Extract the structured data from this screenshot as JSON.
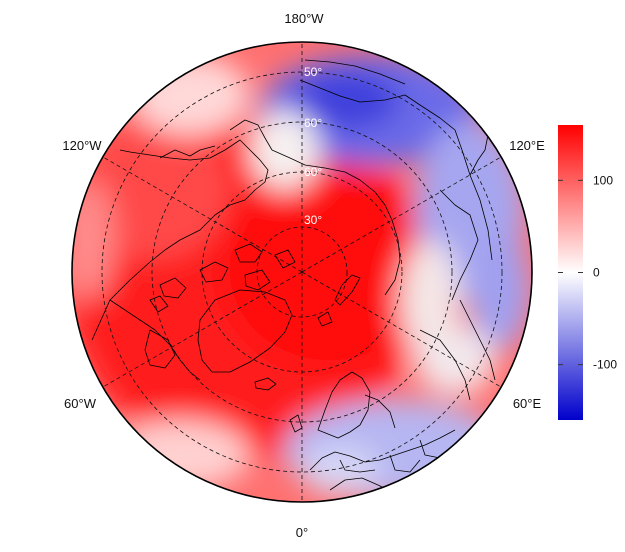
{
  "map": {
    "projection": "north-polar-stereographic",
    "variable_colors": {
      "high": "#ff0000",
      "mid": "#ffffff",
      "low": "#0000dd"
    },
    "longitude_labels": {
      "top": "180°W",
      "upper_left": "120°W",
      "upper_right": "120°E",
      "lower_left": "60°W",
      "lower_right": "60°E",
      "bottom": "0°"
    },
    "latitude_labels": [
      "30°",
      "60°",
      "60°",
      "50°"
    ],
    "graticule": "dashed",
    "coastlines": "black"
  },
  "colorbar": {
    "min": -160,
    "max": 160,
    "ticks": [
      {
        "value": 100,
        "label": "100"
      },
      {
        "value": 0,
        "label": "0"
      },
      {
        "value": -100,
        "label": "-100"
      }
    ]
  }
}
